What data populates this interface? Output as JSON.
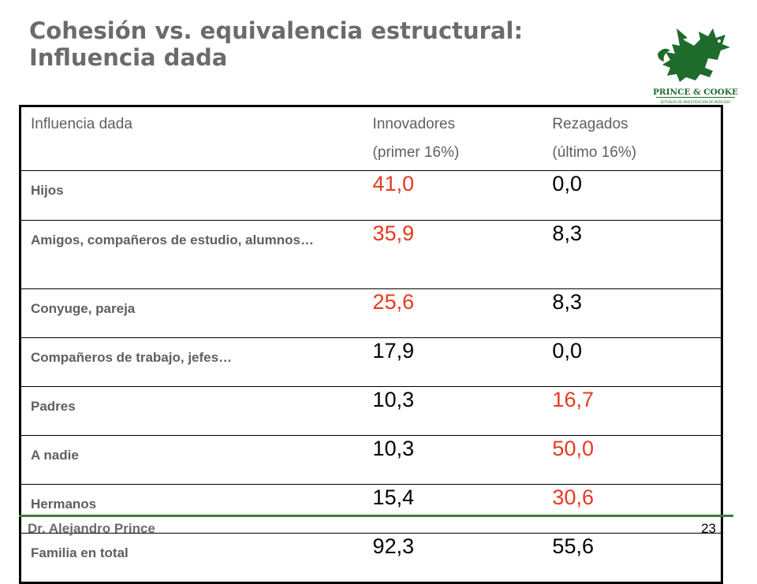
{
  "slide": {
    "title_line1": "Cohesión vs. equivalencia estructural:",
    "title_line2": "Influencia dada"
  },
  "logo": {
    "text": "PRINCE & COOKE",
    "subtext": "ESTUDIOS DE INVESTIGACIÓN DE MERCADO",
    "color": "#1f6b2c"
  },
  "table": {
    "headers": [
      "Influencia dada",
      "Innovadores\n(primer 16%)",
      "Rezagados\n(último 16%)"
    ],
    "rows": [
      {
        "label": "Hijos",
        "innovadores": "41,0",
        "rezagados": "0,0"
      },
      {
        "label": "Amigos, compañeros de estudio, alumnos…",
        "innovadores": "35,9",
        "rezagados": "8,3"
      },
      {
        "label": "Conyuge, pareja",
        "innovadores": "25,6",
        "rezagados": "8,3"
      },
      {
        "label": "Compañeros de trabajo, jefes…",
        "innovadores": "17,9",
        "rezagados": "0,0"
      },
      {
        "label": "Padres",
        "innovadores": "10,3",
        "rezagados": "16,7"
      },
      {
        "label": "A nadie",
        "innovadores": "10,3",
        "rezagados": "50,0"
      },
      {
        "label": "Hermanos",
        "innovadores": "15,4",
        "rezagados": "30,6"
      },
      {
        "label": "Familia en total",
        "innovadores": "92,3",
        "rezagados": "55,6"
      }
    ],
    "highlight_color": "#e8391e"
  },
  "footer": {
    "author": "Dr. Alejandro Prince",
    "page_number": "23"
  }
}
